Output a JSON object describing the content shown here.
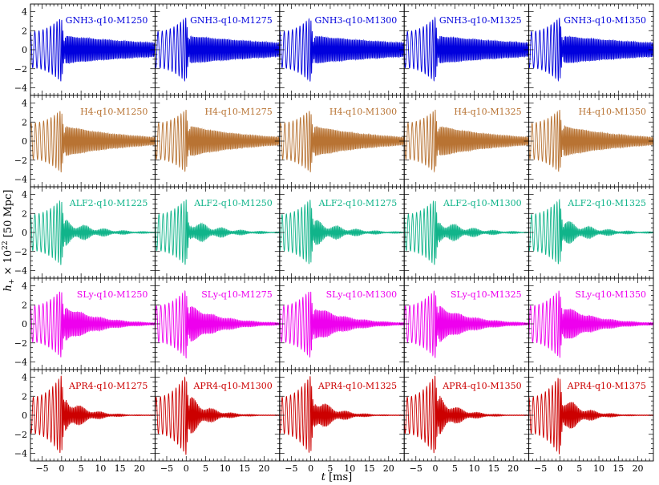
{
  "figure": {
    "ylabel_main": "h",
    "ylabel_sub": "+",
    "ylabel_mid": " × 10",
    "ylabel_sup": "22",
    "ylabel_tail": " [50 Mpc]",
    "xlabel_main": "t",
    "xlabel_tail": " [ms]"
  },
  "chart_data": {
    "type": "line",
    "layout": "5x5 grid of panels, shared axes",
    "x_axis": {
      "label": "t [ms]",
      "range": [
        -8,
        24
      ],
      "ticks": [
        -5,
        0,
        5,
        10,
        15,
        20
      ],
      "tick_labels": [
        "−5",
        "0",
        "5",
        "10",
        "15",
        "20"
      ]
    },
    "y_axis": {
      "label": "h+ × 10^22 [50 Mpc]",
      "range": [
        -4.8,
        4.8
      ],
      "ticks": [
        -4,
        -2,
        0,
        2,
        4
      ],
      "tick_labels": [
        "−4",
        "−2",
        "0",
        "2",
        "4"
      ]
    },
    "grid": false,
    "rows": [
      {
        "eos": "GNH3",
        "color": "#0000dd",
        "panels": [
          "GNH3-q10-M1250",
          "GNH3-q10-M1275",
          "GNH3-q10-M1300",
          "GNH3-q10-M1325",
          "GNH3-q10-M1350"
        ],
        "merger_peak_amplitude": 3.4,
        "postmerger_amplitude": 1.5,
        "postmerger_decay": 0.03,
        "postmerger_beat_depth": 0.05
      },
      {
        "eos": "H4",
        "color": "#b87333",
        "panels": [
          "H4-q10-M1250",
          "H4-q10-M1275",
          "H4-q10-M1300",
          "H4-q10-M1325",
          "H4-q10-M1350"
        ],
        "merger_peak_amplitude": 3.3,
        "postmerger_amplitude": 1.7,
        "postmerger_decay": 0.06,
        "postmerger_beat_depth": 0.05
      },
      {
        "eos": "ALF2",
        "color": "#10b48a",
        "panels": [
          "ALF2-q10-M1225",
          "ALF2-q10-M1250",
          "ALF2-q10-M1275",
          "ALF2-q10-M1300",
          "ALF2-q10-M1325"
        ],
        "merger_peak_amplitude": 3.5,
        "postmerger_amplitude": 1.6,
        "postmerger_decay": 0.13,
        "postmerger_beat_depth": 0.6
      },
      {
        "eos": "SLy",
        "color": "#ee00ee",
        "panels": [
          "SLy-q10-M1250",
          "SLy-q10-M1275",
          "SLy-q10-M1300",
          "SLy-q10-M1325",
          "SLy-q10-M1350"
        ],
        "merger_peak_amplitude": 3.6,
        "postmerger_amplitude": 2.2,
        "postmerger_decay": 0.12,
        "postmerger_beat_depth": 0.2
      },
      {
        "eos": "APR4",
        "color": "#cc0000",
        "panels": [
          "APR4-q10-M1275",
          "APR4-q10-M1300",
          "APR4-q10-M1325",
          "APR4-q10-M1350",
          "APR4-q10-M1375"
        ],
        "merger_peak_amplitude": 4.2,
        "postmerger_amplitude": 2.6,
        "postmerger_decay": 0.2,
        "postmerger_beat_depth": 0.5
      }
    ],
    "waveform_model": {
      "merger_time": 0,
      "inspiral_start": -8,
      "inspiral_start_amplitude": 1.9,
      "postmerger_frequency_khz": 3.2
    }
  }
}
